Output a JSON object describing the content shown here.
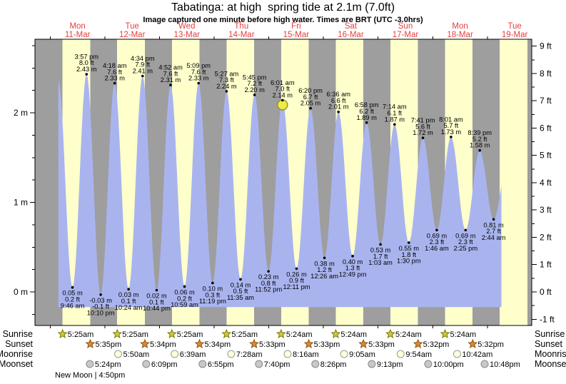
{
  "chart_data": {
    "type": "area",
    "title": "Tabatinga: at high  spring tide at 2.1m (7.0ft)",
    "subtitle": "Image captured one minute before high water. Times are BRT (UTC -3.0hrs)",
    "y_range_m": [
      -0.4,
      2.8
    ],
    "left_axis": {
      "unit": "m",
      "labels": [
        "2 m",
        "1 m",
        "0 m"
      ],
      "major_step_m": 1,
      "minor_step_m": 0.25
    },
    "right_axis": {
      "unit": "ft",
      "labels": [
        "9 ft",
        "8 ft",
        "7 ft",
        "6 ft",
        "5 ft",
        "4 ft",
        "3 ft",
        "2 ft",
        "1 ft",
        "0 ft",
        "-1 ft"
      ],
      "major_step_ft": 1,
      "minor_step_ft": 0.5
    },
    "days": [
      {
        "dow": "Mon",
        "date": "11-Mar"
      },
      {
        "dow": "Tue",
        "date": "12-Mar"
      },
      {
        "dow": "Wed",
        "date": "13-Mar"
      },
      {
        "dow": "Thu",
        "date": "14-Mar"
      },
      {
        "dow": "Fri",
        "date": "15-Mar"
      },
      {
        "dow": "Sat",
        "date": "16-Mar"
      },
      {
        "dow": "Sun",
        "date": "17-Mar"
      },
      {
        "dow": "Mon",
        "date": "18-Mar"
      },
      {
        "dow": "Tue",
        "date": "19-Mar"
      }
    ],
    "tides": [
      {
        "kind": "low",
        "day": 0,
        "time": "9:46 am",
        "ft": "0.2 ft",
        "m": "0.05 m"
      },
      {
        "kind": "high",
        "day": 0,
        "time": "3:57 pm",
        "ft": "8.0 ft",
        "m": "2.43 m"
      },
      {
        "kind": "low",
        "day": 0,
        "time": "10:10 pm",
        "ft": "-0.1 ft",
        "m": "-0.03 m"
      },
      {
        "kind": "high",
        "day": 1,
        "time": "4:18 am",
        "ft": "7.6 ft",
        "m": "2.33 m"
      },
      {
        "kind": "low",
        "day": 1,
        "time": "10:24 am",
        "ft": "0.1 ft",
        "m": "0.03 m"
      },
      {
        "kind": "high",
        "day": 1,
        "time": "4:34 pm",
        "ft": "7.9 ft",
        "m": "2.41 m"
      },
      {
        "kind": "low",
        "day": 1,
        "time": "10:44 pm",
        "ft": "0.1 ft",
        "m": "0.02 m"
      },
      {
        "kind": "high",
        "day": 2,
        "time": "4:52 am",
        "ft": "7.6 ft",
        "m": "2.31 m"
      },
      {
        "kind": "low",
        "day": 2,
        "time": "10:59 am",
        "ft": "0.2 ft",
        "m": "0.06 m"
      },
      {
        "kind": "high",
        "day": 2,
        "time": "5:09 pm",
        "ft": "7.6 ft",
        "m": "2.33 m"
      },
      {
        "kind": "low",
        "day": 2,
        "time": "11:19 pm",
        "ft": "0.3 ft",
        "m": "0.10 m"
      },
      {
        "kind": "high",
        "day": 3,
        "time": "5:27 am",
        "ft": "7.3 ft",
        "m": "2.24 m"
      },
      {
        "kind": "low",
        "day": 3,
        "time": "11:35 am",
        "ft": "0.5 ft",
        "m": "0.14 m"
      },
      {
        "kind": "high",
        "day": 3,
        "time": "5:45 pm",
        "ft": "7.2 ft",
        "m": "2.20 m"
      },
      {
        "kind": "low",
        "day": 3,
        "time": "11:52 pm",
        "ft": "0.8 ft",
        "m": "0.23 m"
      },
      {
        "kind": "high",
        "day": 4,
        "time": "6:01 am",
        "ft": "7.0 ft",
        "m": "2.14 m",
        "current": true
      },
      {
        "kind": "low",
        "day": 4,
        "time": "12:11 pm",
        "ft": "0.9 ft",
        "m": "0.26 m"
      },
      {
        "kind": "high",
        "day": 4,
        "time": "6:20 pm",
        "ft": "6.7 ft",
        "m": "2.05 m"
      },
      {
        "kind": "low",
        "day": 5,
        "time": "12:26 am",
        "ft": "1.2 ft",
        "m": "0.38 m"
      },
      {
        "kind": "high",
        "day": 5,
        "time": "6:36 am",
        "ft": "6.6 ft",
        "m": "2.01 m"
      },
      {
        "kind": "low",
        "day": 5,
        "time": "12:49 pm",
        "ft": "1.3 ft",
        "m": "0.40 m"
      },
      {
        "kind": "high",
        "day": 5,
        "time": "6:58 pm",
        "ft": "6.2 ft",
        "m": "1.89 m"
      },
      {
        "kind": "low",
        "day": 6,
        "time": "1:03 am",
        "ft": "1.7 ft",
        "m": "0.53 m"
      },
      {
        "kind": "high",
        "day": 6,
        "time": "7:14 am",
        "ft": "6.1 ft",
        "m": "1.87 m"
      },
      {
        "kind": "low",
        "day": 6,
        "time": "1:30 pm",
        "ft": "1.8 ft",
        "m": "0.55 m"
      },
      {
        "kind": "high",
        "day": 6,
        "time": "7:41 pm",
        "ft": "5.6 ft",
        "m": "1.72 m"
      },
      {
        "kind": "low",
        "day": 7,
        "time": "1:46 am",
        "ft": "2.3 ft",
        "m": "0.69 m"
      },
      {
        "kind": "high",
        "day": 7,
        "time": "8:01 am",
        "ft": "5.7 ft",
        "m": "1.73 m"
      },
      {
        "kind": "low",
        "day": 7,
        "time": "2:25 pm",
        "ft": "2.3 ft",
        "m": "0.69 m"
      },
      {
        "kind": "high",
        "day": 7,
        "time": "8:39 pm",
        "ft": "5.2 ft",
        "m": "1.58 m"
      },
      {
        "kind": "low",
        "day": 8,
        "time": "2:44 am",
        "ft": "2.7 ft",
        "m": "0.81 m"
      }
    ],
    "render_hints": {
      "lead_peak": {
        "day": 0,
        "time": "3:35 am",
        "height_m": 2.35
      },
      "tail_peak": {
        "day": 8,
        "time": "9:10 am",
        "height_m": 1.5
      },
      "series_end": {
        "day": 8,
        "time": "6:10 am"
      },
      "fill_base_m": -0.17
    }
  },
  "astro": {
    "row_labels": [
      "Sunrise",
      "Sunset",
      "Moonrise",
      "Moonset"
    ],
    "sunrise": [
      {
        "day": 0,
        "time": "5:25am"
      },
      {
        "day": 1,
        "time": "5:25am"
      },
      {
        "day": 2,
        "time": "5:25am"
      },
      {
        "day": 3,
        "time": "5:25am"
      },
      {
        "day": 4,
        "time": "5:24am"
      },
      {
        "day": 5,
        "time": "5:24am"
      },
      {
        "day": 6,
        "time": "5:24am"
      },
      {
        "day": 7,
        "time": "5:24am"
      }
    ],
    "sunset": [
      {
        "day": 0,
        "time": "5:35pm"
      },
      {
        "day": 1,
        "time": "5:34pm"
      },
      {
        "day": 2,
        "time": "5:34pm"
      },
      {
        "day": 3,
        "time": "5:33pm"
      },
      {
        "day": 4,
        "time": "5:33pm"
      },
      {
        "day": 5,
        "time": "5:33pm"
      },
      {
        "day": 6,
        "time": "5:32pm"
      },
      {
        "day": 7,
        "time": "5:32pm"
      }
    ],
    "moonrise": [
      {
        "day": 1,
        "time": "5:50am"
      },
      {
        "day": 2,
        "time": "6:39am"
      },
      {
        "day": 3,
        "time": "7:28am"
      },
      {
        "day": 4,
        "time": "8:16am"
      },
      {
        "day": 5,
        "time": "9:05am"
      },
      {
        "day": 6,
        "time": "9:54am"
      },
      {
        "day": 7,
        "time": "10:42am"
      }
    ],
    "moonset": [
      {
        "day": 0,
        "time": "5:24pm"
      },
      {
        "day": 1,
        "time": "6:09pm"
      },
      {
        "day": 2,
        "time": "6:55pm"
      },
      {
        "day": 3,
        "time": "7:40pm"
      },
      {
        "day": 4,
        "time": "8:26pm"
      },
      {
        "day": 5,
        "time": "9:13pm"
      },
      {
        "day": 6,
        "time": "10:00pm"
      },
      {
        "day": 7,
        "time": "10:48pm"
      }
    ],
    "new_moon_label": "New Moon | 4:50pm"
  },
  "colors": {
    "night_band": "#9e9e9e",
    "day_band": "#ffffcc",
    "tide_fill": "#a9b4ef",
    "date_label": "#e53e3e",
    "axis": "#000000",
    "annotation_text": "#000000",
    "sunrise_star_fill": "#cfc840",
    "sunrise_star_stroke": "#7a7a00",
    "sunset_star_fill": "#e08830",
    "sunset_star_stroke": "#8a5510",
    "moonrise_fill": "#ffffdd",
    "moonrise_stroke": "#999999",
    "moonset_fill": "#c8c8c8",
    "moonset_stroke": "#888888",
    "current_marker_fill": "#f0ea45",
    "current_marker_stroke": "#90902a"
  }
}
